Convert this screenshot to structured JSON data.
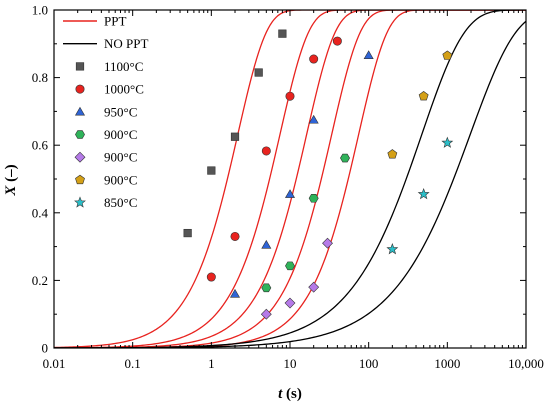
{
  "chart_data": {
    "type": "scatter",
    "title": "",
    "xlabel": {
      "var": "t",
      "unit": " (s)"
    },
    "ylabel": {
      "var": "X",
      "unit": " (–)"
    },
    "x_scale": "log",
    "xlim": [
      0.01,
      10000
    ],
    "ylim": [
      0,
      1.0
    ],
    "grid": false,
    "legend_position": "top-left",
    "x_ticks": [
      0.01,
      0.1,
      1,
      10,
      100,
      1000,
      10000
    ],
    "x_tick_labels": [
      "0.01",
      "0.1",
      "1",
      "10",
      "100",
      "1000",
      "10,000"
    ],
    "y_ticks": [
      0,
      0.2,
      0.4,
      0.6,
      0.8,
      1.0
    ],
    "y_tick_labels": [
      "0",
      "0.2",
      "0.4",
      "0.6",
      "0.8",
      "1.0"
    ],
    "lines": [
      {
        "name": "PPT",
        "color": "#e8231f",
        "curves": [
          {
            "t50": 1.6,
            "n": 1.2
          },
          {
            "t50": 5.5,
            "n": 1.2
          },
          {
            "t50": 12,
            "n": 1.2
          },
          {
            "t50": 25,
            "n": 1.2
          },
          {
            "t50": 55,
            "n": 1.2
          }
        ]
      },
      {
        "name": "NO PPT",
        "color": "#000000",
        "curves": [
          {
            "t50": 300,
            "n": 0.8
          },
          {
            "t50": 1200,
            "n": 0.75
          }
        ]
      }
    ],
    "series": [
      {
        "name": "1100°C",
        "marker": "square",
        "color": "#555555",
        "points": [
          [
            0.5,
            0.34
          ],
          [
            1,
            0.525
          ],
          [
            2,
            0.625
          ],
          [
            4,
            0.815
          ],
          [
            8,
            0.93
          ]
        ]
      },
      {
        "name": "1000°C",
        "marker": "circle",
        "color": "#e8231f",
        "points": [
          [
            1,
            0.21
          ],
          [
            2,
            0.33
          ],
          [
            5,
            0.583
          ],
          [
            10,
            0.745
          ],
          [
            20,
            0.855
          ],
          [
            40,
            0.908
          ]
        ]
      },
      {
        "name": "950°C",
        "marker": "triangle",
        "color": "#2f64d6",
        "points": [
          [
            2,
            0.16
          ],
          [
            5,
            0.305
          ],
          [
            10,
            0.455
          ],
          [
            20,
            0.675
          ],
          [
            100,
            0.866
          ]
        ]
      },
      {
        "name": "900°C",
        "marker": "hexagon",
        "color": "#2fb35a",
        "points": [
          [
            5,
            0.178
          ],
          [
            10,
            0.243
          ],
          [
            20,
            0.443
          ],
          [
            50,
            0.562
          ]
        ]
      },
      {
        "name": "900°C",
        "marker": "diamond",
        "color": "#b57ae8",
        "points": [
          [
            5,
            0.1
          ],
          [
            10,
            0.133
          ],
          [
            20,
            0.18
          ],
          [
            30,
            0.31
          ]
        ]
      },
      {
        "name": "900°C",
        "marker": "pentagon",
        "color": "#d4a017",
        "points": [
          [
            200,
            0.573
          ],
          [
            500,
            0.745
          ],
          [
            1000,
            0.865
          ]
        ]
      },
      {
        "name": "850°C",
        "marker": "star",
        "color": "#2bbfc9",
        "points": [
          [
            200,
            0.292
          ],
          [
            500,
            0.455
          ],
          [
            1000,
            0.607
          ]
        ]
      }
    ]
  }
}
